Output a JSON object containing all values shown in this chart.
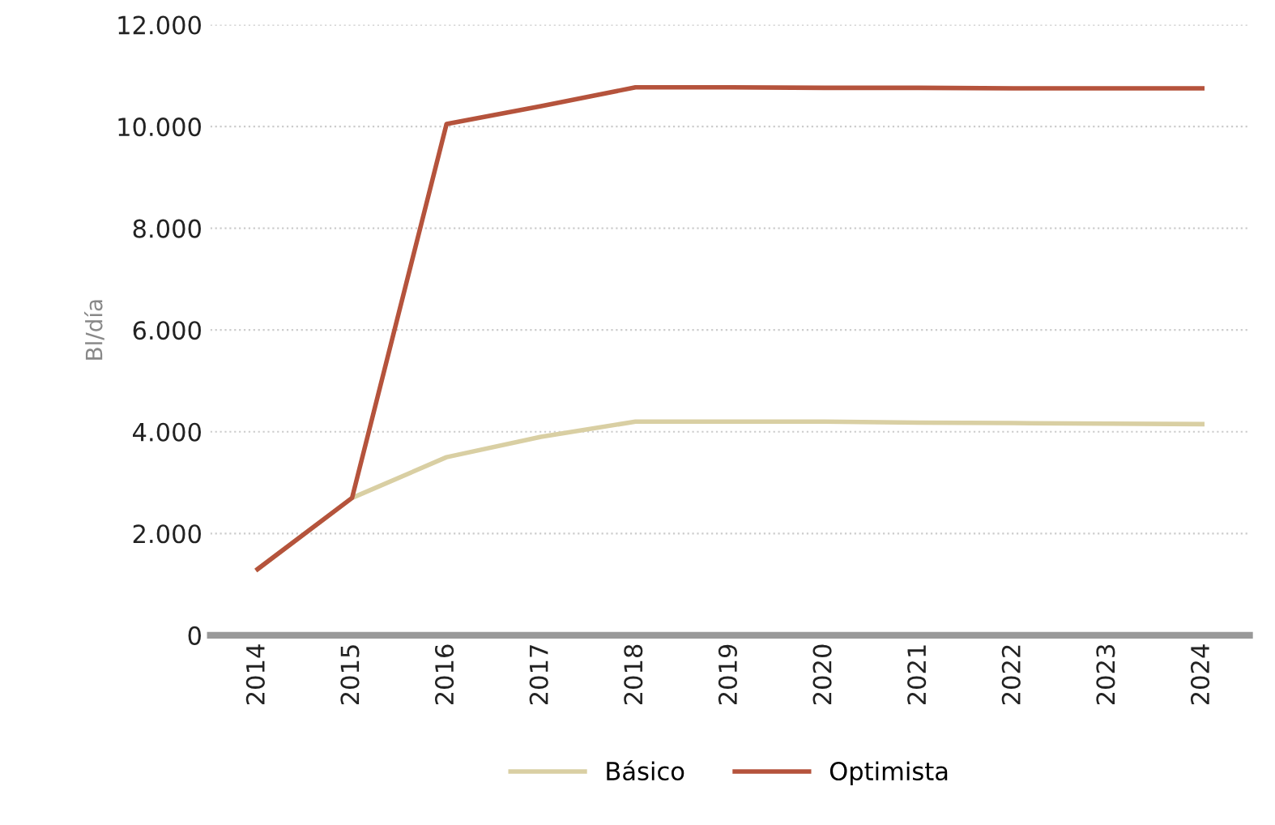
{
  "chart_data": {
    "type": "line",
    "ylabel": "Bl/día",
    "categories": [
      "2014",
      "2015",
      "2016",
      "2017",
      "2018",
      "2019",
      "2020",
      "2021",
      "2022",
      "2023",
      "2024"
    ],
    "series": [
      {
        "name": "Básico",
        "color": "#d9cfa3",
        "values": [
          1300,
          2700,
          3500,
          3900,
          4200,
          4200,
          4200,
          4180,
          4170,
          4160,
          4150
        ]
      },
      {
        "name": "Optimista",
        "color": "#b5533c",
        "values": [
          1300,
          2700,
          10050,
          10400,
          10770,
          10770,
          10760,
          10760,
          10750,
          10750,
          10750
        ]
      }
    ],
    "ylim": [
      0,
      12000
    ],
    "yticks": [
      {
        "value": 0,
        "label": "0"
      },
      {
        "value": 2000,
        "label": "2.000"
      },
      {
        "value": 4000,
        "label": "4.000"
      },
      {
        "value": 6000,
        "label": "6.000"
      },
      {
        "value": 8000,
        "label": "8.000"
      },
      {
        "value": 10000,
        "label": "10.000"
      },
      {
        "value": 12000,
        "label": "12.000"
      }
    ],
    "grid": "y",
    "legend": "bottom",
    "marker": "none",
    "line_style": "solid"
  }
}
